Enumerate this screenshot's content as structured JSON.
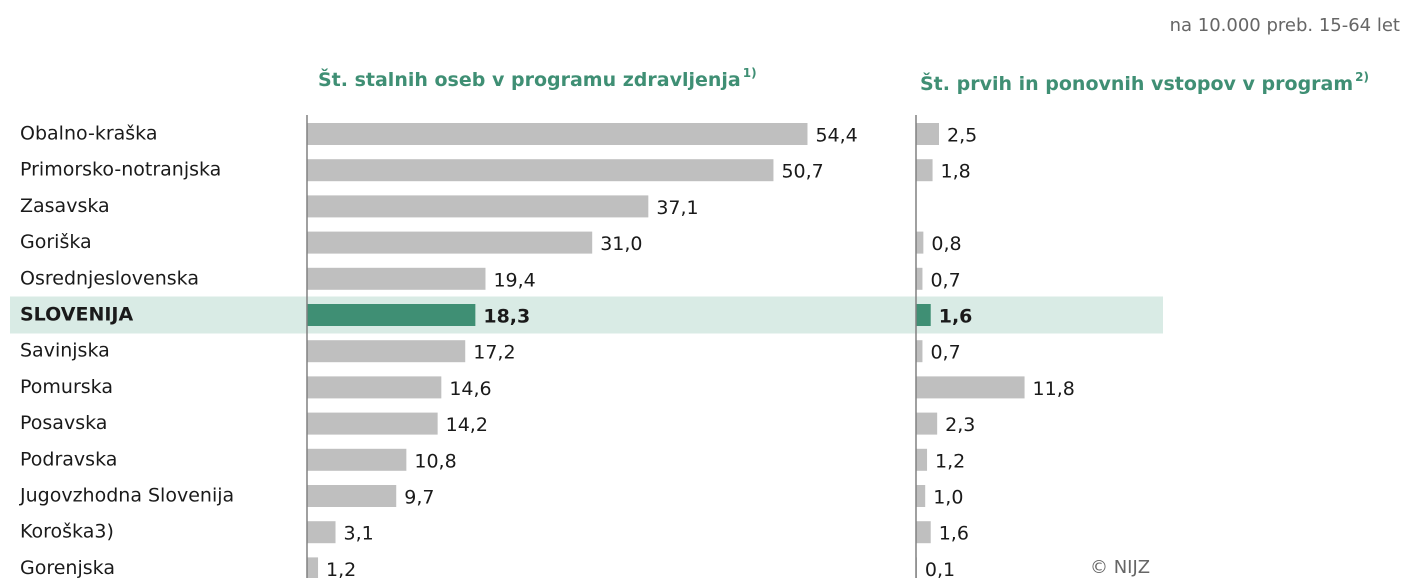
{
  "unit_note": "na 10.000 preb. 15-64 let",
  "source": "© NIJZ",
  "chart_data": {
    "type": "bar",
    "orientation": "horizontal",
    "categories": [
      "Obalno-kraška",
      "Primorsko-notranjska",
      "Zasavska",
      "Goriška",
      "Osrednjeslovenska",
      "SLOVENIJA",
      "Savinjska",
      "Pomurska",
      "Posavska",
      "Podravska",
      "Jugovzhodna Slovenija",
      "Koroška3)",
      "Gorenjska"
    ],
    "highlight": "SLOVENIJA",
    "highlight_color": "#3f8f74",
    "highlight_band_color": "#d9ebe5",
    "xlim": [
      0,
      60
    ],
    "series": [
      {
        "name": "Št. stalnih oseb v programu zdravljenja",
        "footnote": "1)",
        "color": "#bfbfbf",
        "values": [
          54.4,
          50.7,
          37.1,
          31.0,
          19.4,
          18.3,
          17.2,
          14.6,
          14.2,
          10.8,
          9.7,
          3.1,
          1.2
        ],
        "value_labels": [
          "54,4",
          "50,7",
          "37,1",
          "31,0",
          "19,4",
          "18,3",
          "17,2",
          "14,6",
          "14,2",
          "10,8",
          "9,7",
          "3,1",
          "1,2"
        ]
      },
      {
        "name": "Št. prvih in ponovnih vstopov v program",
        "footnote": "2)",
        "color": "#bfbfbf",
        "values": [
          2.5,
          1.8,
          null,
          0.8,
          0.7,
          1.6,
          0.7,
          11.8,
          2.3,
          1.2,
          1.0,
          1.6,
          0.1
        ],
        "value_labels": [
          "2,5",
          "1,8",
          null,
          "0,8",
          "0,7",
          "1,6",
          "0,7",
          "11,8",
          "2,3",
          "1,2",
          "1,0",
          "1,6",
          "0,1"
        ]
      }
    ]
  }
}
